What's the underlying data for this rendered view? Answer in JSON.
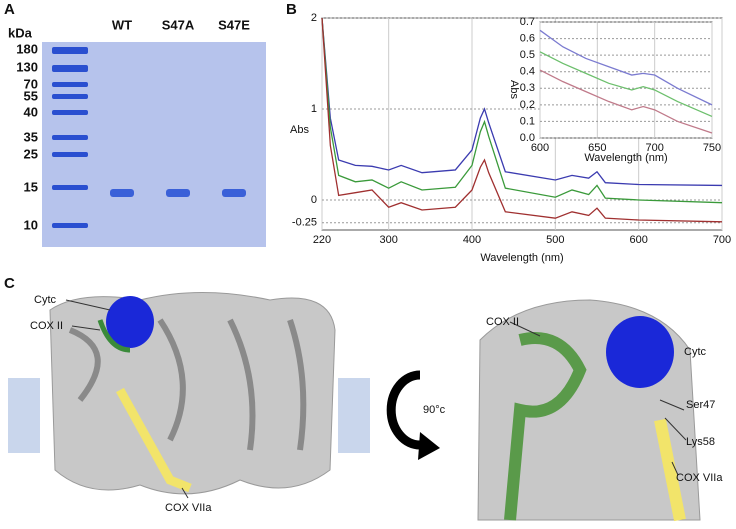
{
  "panel_a": {
    "label": "A",
    "unit": "kDa",
    "markers": [
      "180",
      "130",
      "70",
      "55",
      "40",
      "35",
      "25",
      "15",
      "10"
    ],
    "lanes": [
      "WT",
      "S47A",
      "S47E"
    ]
  },
  "chart_data": {
    "type": "line",
    "panel_label": "B",
    "xlabel": "Wavelength (nm)",
    "ylabel": "Abs",
    "x": [
      220,
      230,
      240,
      260,
      280,
      300,
      315,
      340,
      380,
      400,
      410,
      415,
      420,
      440,
      500,
      520,
      540,
      550,
      560,
      600,
      700
    ],
    "series": [
      {
        "color": "#3b3bb0",
        "values": [
          2,
          0.9,
          0.44,
          0.38,
          0.37,
          0.33,
          0.38,
          0.3,
          0.33,
          0.55,
          0.9,
          1.0,
          0.85,
          0.31,
          0.22,
          0.27,
          0.24,
          0.31,
          0.19,
          0.17,
          0.16
        ]
      },
      {
        "color": "#3a9a3a",
        "values": [
          2,
          0.8,
          0.27,
          0.2,
          0.22,
          0.13,
          0.2,
          0.11,
          0.14,
          0.38,
          0.75,
          0.86,
          0.7,
          0.13,
          0.03,
          0.11,
          0.06,
          0.16,
          0.02,
          0.0,
          -0.03
        ]
      },
      {
        "color": "#a03030",
        "values": [
          2,
          0.6,
          0.05,
          0.08,
          0.11,
          -0.08,
          -0.03,
          -0.11,
          -0.08,
          0.11,
          0.36,
          0.44,
          0.3,
          -0.13,
          -0.2,
          -0.13,
          -0.17,
          -0.09,
          -0.2,
          -0.22,
          -0.24
        ]
      }
    ],
    "xlim": [
      220,
      700
    ],
    "xticks": [
      220,
      300,
      400,
      500,
      600,
      700
    ],
    "ylim": [
      -0.33,
      2
    ],
    "yticks": [
      -0.25,
      0,
      1,
      2
    ],
    "grid": true,
    "inset": {
      "type": "line",
      "xlabel": "Wavelength (nm)",
      "ylabel": "Abs",
      "x": [
        600,
        620,
        640,
        660,
        680,
        690,
        700,
        720,
        750
      ],
      "series": [
        {
          "color": "#7b7bd0",
          "values": [
            0.65,
            0.55,
            0.48,
            0.43,
            0.38,
            0.39,
            0.38,
            0.3,
            0.2
          ]
        },
        {
          "color": "#6cbf6c",
          "values": [
            0.52,
            0.45,
            0.39,
            0.33,
            0.29,
            0.31,
            0.29,
            0.22,
            0.13
          ]
        },
        {
          "color": "#c07a8a",
          "values": [
            0.41,
            0.34,
            0.28,
            0.22,
            0.17,
            0.19,
            0.17,
            0.1,
            0.03
          ]
        }
      ],
      "xlim": [
        600,
        750
      ],
      "xticks": [
        600,
        650,
        700,
        750
      ],
      "ylim": [
        0,
        0.7
      ],
      "yticks": [
        {
          "value": 0,
          "label": "0.0"
        },
        0.1,
        0.2,
        0.3,
        0.4,
        0.5,
        0.6,
        0.7
      ],
      "grid": true
    }
  },
  "panel_c": {
    "label": "C",
    "left": {
      "cytc": "Cytc",
      "cox2": "COX II",
      "cox7": "COX VIIa"
    },
    "rotation": "90°c",
    "right": {
      "cox2": "COX II",
      "cytc": "Cytc",
      "ser": "Ser47",
      "lys": "Lys58",
      "cox7": "COX VIIa"
    }
  }
}
